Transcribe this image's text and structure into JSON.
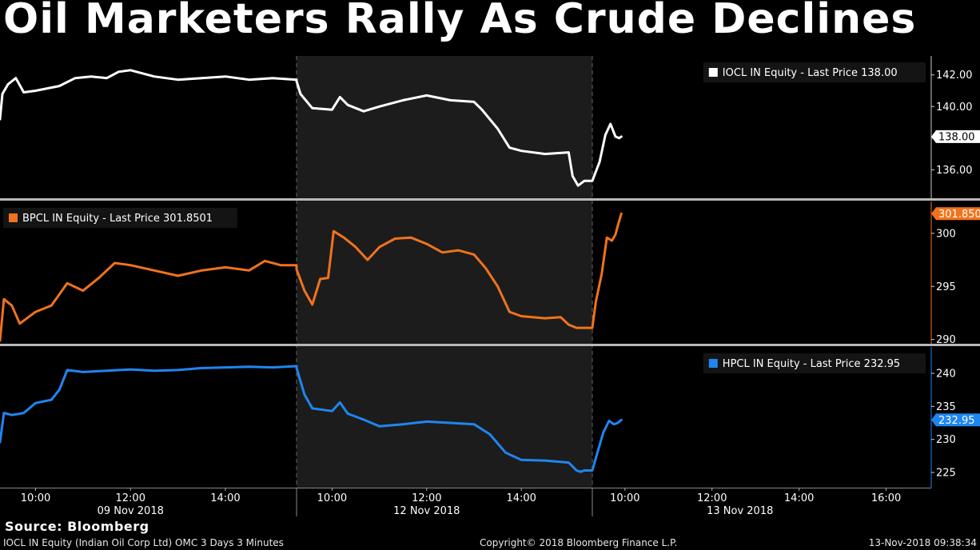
{
  "title": "Oil Marketers Rally As Crude Declines",
  "source": "Source: Bloomberg",
  "footer": {
    "left": "IOCL IN Equity (Indian Oil Corp Ltd) OMC 3 Days 3 Minutes",
    "center": "Copyright© 2018 Bloomberg Finance L.P.",
    "right": "13-Nov-2018 09:38:34"
  },
  "colors": {
    "iocl": "#ffffff",
    "bpcl": "#f0731c",
    "hpcl": "#1f86f0",
    "shade": "#1c1c1c",
    "divider": "#b8b8b8"
  },
  "chart_data": {
    "type": "line",
    "x_axis": {
      "sessions": [
        {
          "date": "09 Nov 2018",
          "start": "09:15",
          "end": "15:30",
          "ticks": [
            "10:00",
            "12:00",
            "14:00"
          ]
        },
        {
          "date": "12 Nov 2018",
          "start": "09:15",
          "end": "15:30",
          "ticks": [
            "10:00",
            "12:00",
            "14:00"
          ]
        },
        {
          "date": "13 Nov 2018",
          "start": "09:15",
          "end": "17:00",
          "ticks": [
            "10:00",
            "12:00",
            "14:00",
            "16:00"
          ]
        }
      ],
      "shaded_session": "12 Nov 2018"
    },
    "panels": [
      {
        "name": "iocl",
        "legend": "IOCL IN Equity - Last Price 138.00",
        "legend_position": "top-right",
        "last_label": "138.00",
        "ylim": [
          134.2,
          143.2
        ],
        "yticks": [
          136.0,
          138.0,
          140.0,
          142.0
        ],
        "ytick_labels": [
          "136.00",
          "138.00",
          "140.00",
          "142.00"
        ],
        "series": [
          {
            "s": 0,
            "t": "09:15",
            "v": 139.2
          },
          {
            "s": 0,
            "t": "09:18",
            "v": 140.8
          },
          {
            "s": 0,
            "t": "09:25",
            "v": 141.4
          },
          {
            "s": 0,
            "t": "09:35",
            "v": 141.8
          },
          {
            "s": 0,
            "t": "09:45",
            "v": 140.9
          },
          {
            "s": 0,
            "t": "10:00",
            "v": 141.0
          },
          {
            "s": 0,
            "t": "10:30",
            "v": 141.3
          },
          {
            "s": 0,
            "t": "10:50",
            "v": 141.8
          },
          {
            "s": 0,
            "t": "11:10",
            "v": 141.9
          },
          {
            "s": 0,
            "t": "11:30",
            "v": 141.8
          },
          {
            "s": 0,
            "t": "11:45",
            "v": 142.2
          },
          {
            "s": 0,
            "t": "12:00",
            "v": 142.3
          },
          {
            "s": 0,
            "t": "12:30",
            "v": 141.9
          },
          {
            "s": 0,
            "t": "13:00",
            "v": 141.7
          },
          {
            "s": 0,
            "t": "13:30",
            "v": 141.8
          },
          {
            "s": 0,
            "t": "14:00",
            "v": 141.9
          },
          {
            "s": 0,
            "t": "14:30",
            "v": 141.7
          },
          {
            "s": 0,
            "t": "15:00",
            "v": 141.8
          },
          {
            "s": 0,
            "t": "15:30",
            "v": 141.7
          },
          {
            "s": 1,
            "t": "09:15",
            "v": 141.6
          },
          {
            "s": 1,
            "t": "09:20",
            "v": 140.8
          },
          {
            "s": 1,
            "t": "09:35",
            "v": 139.9
          },
          {
            "s": 1,
            "t": "10:00",
            "v": 139.8
          },
          {
            "s": 1,
            "t": "10:10",
            "v": 140.6
          },
          {
            "s": 1,
            "t": "10:20",
            "v": 140.1
          },
          {
            "s": 1,
            "t": "10:40",
            "v": 139.7
          },
          {
            "s": 1,
            "t": "11:00",
            "v": 140.0
          },
          {
            "s": 1,
            "t": "11:30",
            "v": 140.4
          },
          {
            "s": 1,
            "t": "12:00",
            "v": 140.7
          },
          {
            "s": 1,
            "t": "12:30",
            "v": 140.4
          },
          {
            "s": 1,
            "t": "13:00",
            "v": 140.3
          },
          {
            "s": 1,
            "t": "13:10",
            "v": 139.8
          },
          {
            "s": 1,
            "t": "13:30",
            "v": 138.6
          },
          {
            "s": 1,
            "t": "13:45",
            "v": 137.4
          },
          {
            "s": 1,
            "t": "14:00",
            "v": 137.2
          },
          {
            "s": 1,
            "t": "14:30",
            "v": 137.0
          },
          {
            "s": 1,
            "t": "15:00",
            "v": 137.1
          },
          {
            "s": 1,
            "t": "15:05",
            "v": 135.6
          },
          {
            "s": 1,
            "t": "15:12",
            "v": 135.0
          },
          {
            "s": 1,
            "t": "15:20",
            "v": 135.3
          },
          {
            "s": 1,
            "t": "15:30",
            "v": 135.3
          },
          {
            "s": 2,
            "t": "09:15",
            "v": 135.3
          },
          {
            "s": 2,
            "t": "09:25",
            "v": 136.5
          },
          {
            "s": 2,
            "t": "09:33",
            "v": 138.2
          },
          {
            "s": 2,
            "t": "09:40",
            "v": 138.9
          },
          {
            "s": 2,
            "t": "09:47",
            "v": 138.1
          },
          {
            "s": 2,
            "t": "09:52",
            "v": 138.0
          },
          {
            "s": 2,
            "t": "09:55",
            "v": 138.1
          }
        ]
      },
      {
        "name": "bpcl",
        "legend": "BPCL IN Equity - Last Price 301.8501",
        "legend_position": "top-left",
        "last_label": "301.8501",
        "ylim": [
          289.6,
          303.0
        ],
        "yticks": [
          290,
          295,
          300
        ],
        "ytick_labels": [
          "290",
          "295",
          "300"
        ],
        "series": [
          {
            "s": 0,
            "t": "09:15",
            "v": 289.9
          },
          {
            "s": 0,
            "t": "09:20",
            "v": 293.8
          },
          {
            "s": 0,
            "t": "09:30",
            "v": 293.2
          },
          {
            "s": 0,
            "t": "09:40",
            "v": 291.5
          },
          {
            "s": 0,
            "t": "10:00",
            "v": 292.6
          },
          {
            "s": 0,
            "t": "10:20",
            "v": 293.2
          },
          {
            "s": 0,
            "t": "10:40",
            "v": 295.3
          },
          {
            "s": 0,
            "t": "11:00",
            "v": 294.6
          },
          {
            "s": 0,
            "t": "11:20",
            "v": 295.8
          },
          {
            "s": 0,
            "t": "11:40",
            "v": 297.2
          },
          {
            "s": 0,
            "t": "12:00",
            "v": 297.0
          },
          {
            "s": 0,
            "t": "12:30",
            "v": 296.5
          },
          {
            "s": 0,
            "t": "13:00",
            "v": 296.0
          },
          {
            "s": 0,
            "t": "13:30",
            "v": 296.5
          },
          {
            "s": 0,
            "t": "14:00",
            "v": 296.8
          },
          {
            "s": 0,
            "t": "14:30",
            "v": 296.5
          },
          {
            "s": 0,
            "t": "14:50",
            "v": 297.4
          },
          {
            "s": 0,
            "t": "15:10",
            "v": 297.0
          },
          {
            "s": 0,
            "t": "15:30",
            "v": 297.0
          },
          {
            "s": 1,
            "t": "09:15",
            "v": 296.6
          },
          {
            "s": 1,
            "t": "09:25",
            "v": 294.6
          },
          {
            "s": 1,
            "t": "09:35",
            "v": 293.3
          },
          {
            "s": 1,
            "t": "09:45",
            "v": 295.7
          },
          {
            "s": 1,
            "t": "09:55",
            "v": 295.8
          },
          {
            "s": 1,
            "t": "10:02",
            "v": 300.2
          },
          {
            "s": 1,
            "t": "10:15",
            "v": 299.6
          },
          {
            "s": 1,
            "t": "10:30",
            "v": 298.7
          },
          {
            "s": 1,
            "t": "10:45",
            "v": 297.5
          },
          {
            "s": 1,
            "t": "11:00",
            "v": 298.7
          },
          {
            "s": 1,
            "t": "11:20",
            "v": 299.5
          },
          {
            "s": 1,
            "t": "11:40",
            "v": 299.6
          },
          {
            "s": 1,
            "t": "12:00",
            "v": 299.0
          },
          {
            "s": 1,
            "t": "12:20",
            "v": 298.2
          },
          {
            "s": 1,
            "t": "12:40",
            "v": 298.4
          },
          {
            "s": 1,
            "t": "13:00",
            "v": 298.0
          },
          {
            "s": 1,
            "t": "13:15",
            "v": 296.7
          },
          {
            "s": 1,
            "t": "13:30",
            "v": 295.0
          },
          {
            "s": 1,
            "t": "13:45",
            "v": 292.6
          },
          {
            "s": 1,
            "t": "14:00",
            "v": 292.2
          },
          {
            "s": 1,
            "t": "14:30",
            "v": 292.0
          },
          {
            "s": 1,
            "t": "14:50",
            "v": 292.1
          },
          {
            "s": 1,
            "t": "15:00",
            "v": 291.4
          },
          {
            "s": 1,
            "t": "15:10",
            "v": 291.1
          },
          {
            "s": 1,
            "t": "15:20",
            "v": 291.1
          },
          {
            "s": 1,
            "t": "15:30",
            "v": 291.1
          },
          {
            "s": 2,
            "t": "09:15",
            "v": 291.1
          },
          {
            "s": 2,
            "t": "09:20",
            "v": 293.6
          },
          {
            "s": 2,
            "t": "09:28",
            "v": 296.2
          },
          {
            "s": 2,
            "t": "09:35",
            "v": 299.6
          },
          {
            "s": 2,
            "t": "09:42",
            "v": 299.3
          },
          {
            "s": 2,
            "t": "09:47",
            "v": 299.9
          },
          {
            "s": 2,
            "t": "09:50",
            "v": 300.7
          },
          {
            "s": 2,
            "t": "09:55",
            "v": 301.85
          }
        ]
      },
      {
        "name": "hpcl",
        "legend": "HPCL IN Equity - Last Price 232.95",
        "legend_position": "top-right",
        "last_label": "232.95",
        "ylim": [
          222.7,
          244.0
        ],
        "yticks": [
          225,
          230,
          235,
          240
        ],
        "ytick_labels": [
          "225",
          "230",
          "235",
          "240"
        ],
        "series": [
          {
            "s": 0,
            "t": "09:15",
            "v": 229.6
          },
          {
            "s": 0,
            "t": "09:20",
            "v": 234.0
          },
          {
            "s": 0,
            "t": "09:30",
            "v": 233.7
          },
          {
            "s": 0,
            "t": "09:45",
            "v": 234.0
          },
          {
            "s": 0,
            "t": "10:00",
            "v": 235.5
          },
          {
            "s": 0,
            "t": "10:20",
            "v": 236.0
          },
          {
            "s": 0,
            "t": "10:30",
            "v": 237.5
          },
          {
            "s": 0,
            "t": "10:40",
            "v": 240.5
          },
          {
            "s": 0,
            "t": "11:00",
            "v": 240.2
          },
          {
            "s": 0,
            "t": "11:30",
            "v": 240.4
          },
          {
            "s": 0,
            "t": "12:00",
            "v": 240.6
          },
          {
            "s": 0,
            "t": "12:30",
            "v": 240.4
          },
          {
            "s": 0,
            "t": "13:00",
            "v": 240.5
          },
          {
            "s": 0,
            "t": "13:30",
            "v": 240.8
          },
          {
            "s": 0,
            "t": "14:00",
            "v": 240.9
          },
          {
            "s": 0,
            "t": "14:30",
            "v": 241.0
          },
          {
            "s": 0,
            "t": "15:00",
            "v": 240.9
          },
          {
            "s": 0,
            "t": "15:30",
            "v": 241.1
          },
          {
            "s": 1,
            "t": "09:15",
            "v": 240.8
          },
          {
            "s": 1,
            "t": "09:25",
            "v": 236.8
          },
          {
            "s": 1,
            "t": "09:35",
            "v": 234.7
          },
          {
            "s": 1,
            "t": "10:00",
            "v": 234.3
          },
          {
            "s": 1,
            "t": "10:10",
            "v": 235.6
          },
          {
            "s": 1,
            "t": "10:20",
            "v": 233.9
          },
          {
            "s": 1,
            "t": "10:40",
            "v": 233.0
          },
          {
            "s": 1,
            "t": "11:00",
            "v": 232.0
          },
          {
            "s": 1,
            "t": "11:30",
            "v": 232.3
          },
          {
            "s": 1,
            "t": "12:00",
            "v": 232.7
          },
          {
            "s": 1,
            "t": "12:30",
            "v": 232.5
          },
          {
            "s": 1,
            "t": "13:00",
            "v": 232.3
          },
          {
            "s": 1,
            "t": "13:20",
            "v": 230.8
          },
          {
            "s": 1,
            "t": "13:40",
            "v": 228.0
          },
          {
            "s": 1,
            "t": "14:00",
            "v": 226.9
          },
          {
            "s": 1,
            "t": "14:30",
            "v": 226.8
          },
          {
            "s": 1,
            "t": "15:00",
            "v": 226.5
          },
          {
            "s": 1,
            "t": "15:10",
            "v": 225.3
          },
          {
            "s": 1,
            "t": "15:15",
            "v": 225.1
          },
          {
            "s": 1,
            "t": "15:20",
            "v": 225.3
          },
          {
            "s": 1,
            "t": "15:30",
            "v": 225.3
          },
          {
            "s": 2,
            "t": "09:15",
            "v": 225.3
          },
          {
            "s": 2,
            "t": "09:22",
            "v": 228.0
          },
          {
            "s": 2,
            "t": "09:30",
            "v": 231.0
          },
          {
            "s": 2,
            "t": "09:38",
            "v": 232.8
          },
          {
            "s": 2,
            "t": "09:45",
            "v": 232.3
          },
          {
            "s": 2,
            "t": "09:50",
            "v": 232.5
          },
          {
            "s": 2,
            "t": "09:55",
            "v": 232.95
          }
        ]
      }
    ]
  }
}
